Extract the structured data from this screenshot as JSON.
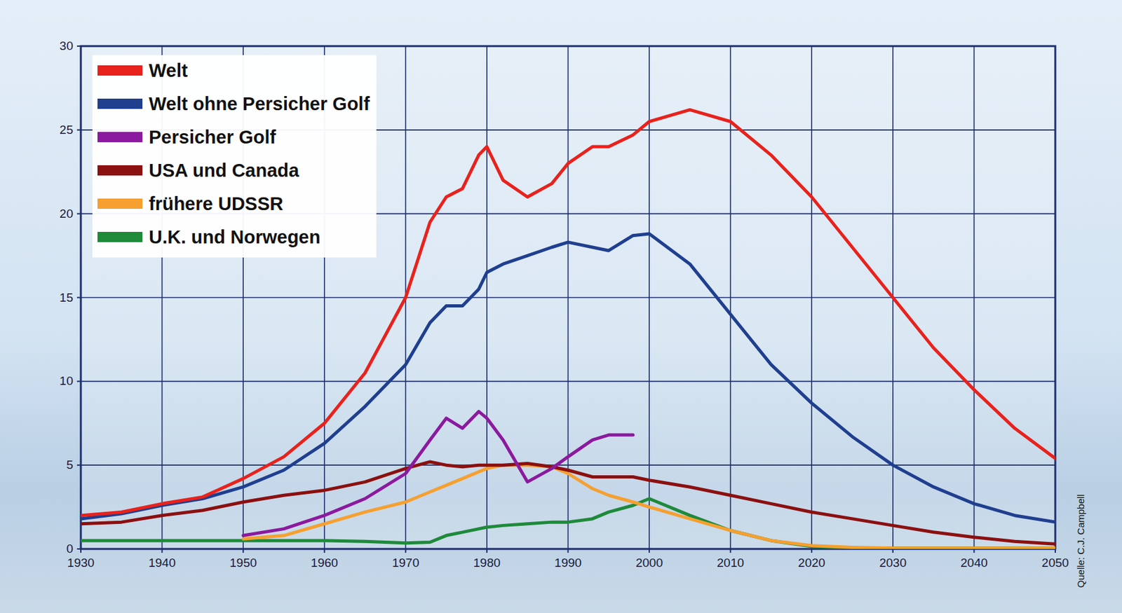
{
  "chart_data": {
    "type": "line",
    "x": [
      1930,
      1935,
      1940,
      1945,
      1950,
      1955,
      1960,
      1965,
      1970,
      1973,
      1975,
      1977,
      1979,
      1980,
      1982,
      1985,
      1988,
      1990,
      1993,
      1995,
      1998,
      2000,
      2005,
      2010,
      2015,
      2020,
      2025,
      2030,
      2035,
      2040,
      2045,
      2050
    ],
    "series": [
      {
        "name": "Welt",
        "color": "#e8221c",
        "values": [
          2.0,
          2.2,
          2.7,
          3.1,
          4.2,
          5.5,
          7.5,
          10.5,
          15,
          19.5,
          21,
          21.5,
          23.5,
          24,
          22,
          21,
          21.8,
          23,
          24,
          24,
          24.7,
          25.5,
          26.2,
          25.5,
          23.5,
          21,
          18,
          15,
          12,
          9.5,
          7.2,
          5.4
        ]
      },
      {
        "name": "Welt ohne Persicher Golf",
        "color": "#1f3f8f",
        "values": [
          1.8,
          2.1,
          2.6,
          3.0,
          3.7,
          4.7,
          6.3,
          8.5,
          11,
          13.5,
          14.5,
          14.5,
          15.5,
          16.5,
          17,
          17.5,
          18,
          18.3,
          18,
          17.8,
          18.7,
          18.8,
          17,
          14,
          11,
          8.7,
          6.7,
          5,
          3.7,
          2.7,
          2,
          1.6
        ]
      },
      {
        "name": "Persicher Golf",
        "color": "#8b1a9e",
        "values": [
          null,
          null,
          null,
          null,
          0.8,
          1.2,
          2.0,
          3.0,
          4.5,
          6.5,
          7.8,
          7.2,
          8.2,
          7.8,
          6.5,
          4.0,
          4.8,
          5.5,
          6.5,
          6.8,
          6.8,
          null,
          null,
          null,
          null,
          null,
          null,
          null,
          null,
          null,
          null,
          null
        ]
      },
      {
        "name": "USA und Canada",
        "color": "#8b1010",
        "values": [
          1.5,
          1.6,
          2.0,
          2.3,
          2.8,
          3.2,
          3.5,
          4.0,
          4.8,
          5.2,
          5.0,
          4.9,
          5.0,
          5.0,
          5.0,
          5.1,
          4.9,
          4.7,
          4.3,
          4.3,
          4.3,
          4.1,
          3.7,
          3.2,
          2.7,
          2.2,
          1.8,
          1.4,
          1.0,
          0.7,
          0.45,
          0.3
        ]
      },
      {
        "name": "frühere UDSSR",
        "color": "#f5a030",
        "values": [
          null,
          null,
          null,
          null,
          0.6,
          0.8,
          1.5,
          2.2,
          2.8,
          3.4,
          3.8,
          4.2,
          4.6,
          4.8,
          5.0,
          5.0,
          4.9,
          4.5,
          3.6,
          3.2,
          2.8,
          2.5,
          1.8,
          1.1,
          0.5,
          0.2,
          0.1,
          0.05,
          0.05,
          0.05,
          0.05,
          0.05
        ]
      },
      {
        "name": "U.K. und Norwegen",
        "color": "#1e8a3a",
        "values": [
          0.5,
          0.5,
          0.5,
          0.5,
          0.5,
          0.5,
          0.5,
          0.45,
          0.35,
          0.4,
          0.8,
          1.0,
          1.2,
          1.3,
          1.4,
          1.5,
          1.6,
          1.6,
          1.8,
          2.2,
          2.6,
          3.0,
          2.0,
          1.1,
          0.5,
          0.15,
          0.05,
          0.05,
          0.05,
          0.05,
          0.05,
          0.05
        ]
      }
    ],
    "xlim": [
      1930,
      2050
    ],
    "ylim": [
      0,
      30
    ],
    "xticks": [
      1930,
      1940,
      1950,
      1960,
      1970,
      1980,
      1990,
      2000,
      2010,
      2020,
      2030,
      2040,
      2050
    ],
    "yticks": [
      0,
      5,
      10,
      15,
      20,
      25,
      30
    ],
    "grid": true,
    "legend": "top-left",
    "source": "Quelle: C.J. Campbell"
  }
}
